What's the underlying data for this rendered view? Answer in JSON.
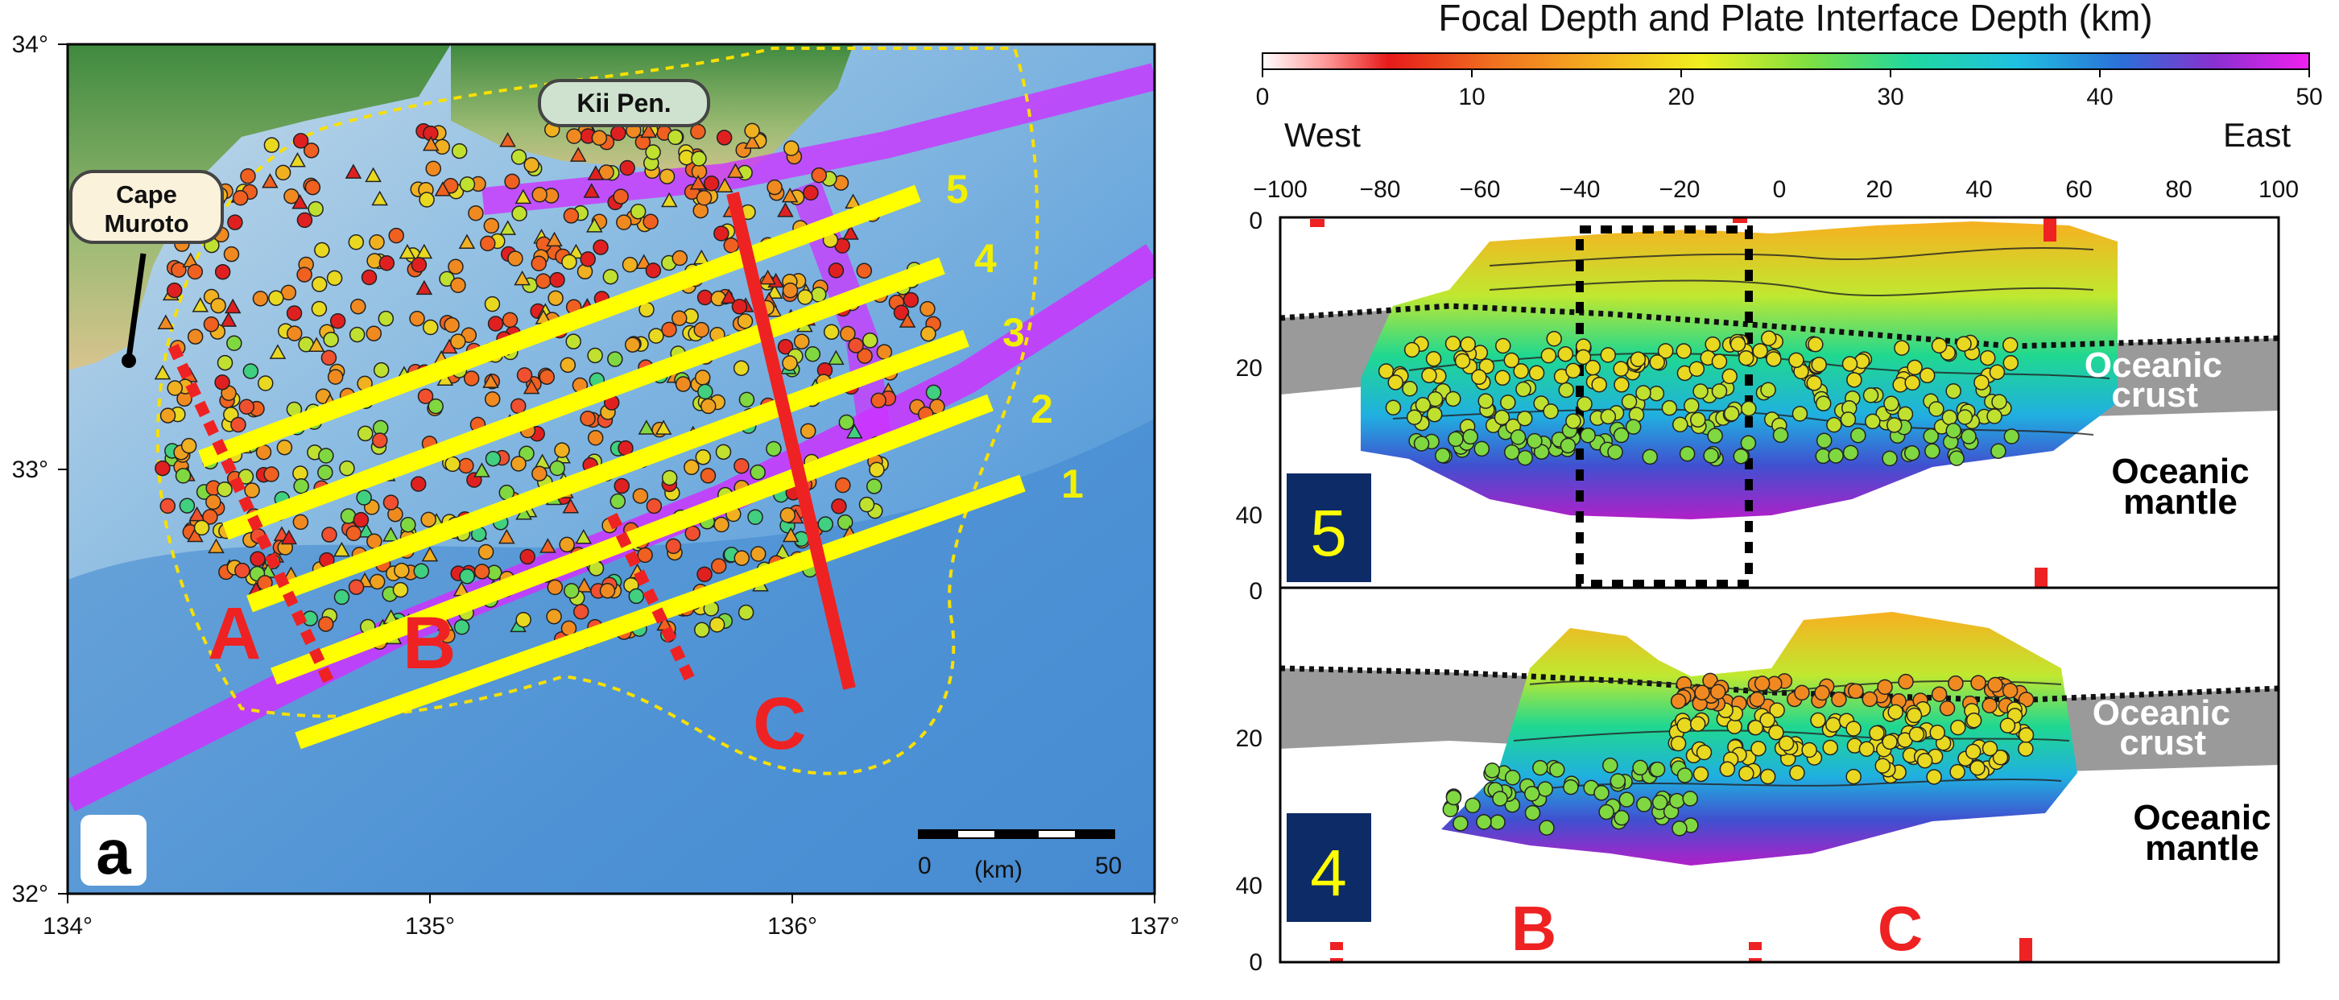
{
  "map": {
    "panel_label": "a",
    "lon_ticks": [
      "134°",
      "135°",
      "136°",
      "137°"
    ],
    "lat_ticks": [
      "34°",
      "33°",
      "32°"
    ],
    "place_labels": {
      "kii": "Kii Pen.",
      "muroto_line1": "Cape",
      "muroto_line2": "Muroto"
    },
    "profile_numbers": [
      "1",
      "2",
      "3",
      "4",
      "5"
    ],
    "section_letters": [
      "A",
      "B",
      "C"
    ],
    "scale_bar": {
      "start": "0",
      "end": "50",
      "unit": "(km)"
    }
  },
  "colorbar": {
    "title": "Focal Depth and Plate Interface Depth (km)",
    "ticks": [
      "0",
      "10",
      "20",
      "30",
      "40",
      "50"
    ],
    "range": [
      0,
      50
    ]
  },
  "cross_sections": {
    "west_label": "West",
    "east_label": "East",
    "x_ticks": [
      "−100",
      "−80",
      "−60",
      "−40",
      "−20",
      "0",
      "20",
      "40",
      "60",
      "80",
      "100"
    ],
    "y_ticks": [
      "0",
      "20",
      "40"
    ],
    "panel_ids": [
      "5",
      "4"
    ],
    "crust_label_1": "Oceanic",
    "crust_label_2": "crust",
    "mantle_label_1": "Oceanic",
    "mantle_label_2": "mantle",
    "bottom_letters": [
      "B",
      "C"
    ]
  },
  "colors": {
    "profile_lines": "#ffff00",
    "plate_boundary": "#cc33ff",
    "section_letters": "#ee2222",
    "panel_box": "#0d2b66"
  }
}
